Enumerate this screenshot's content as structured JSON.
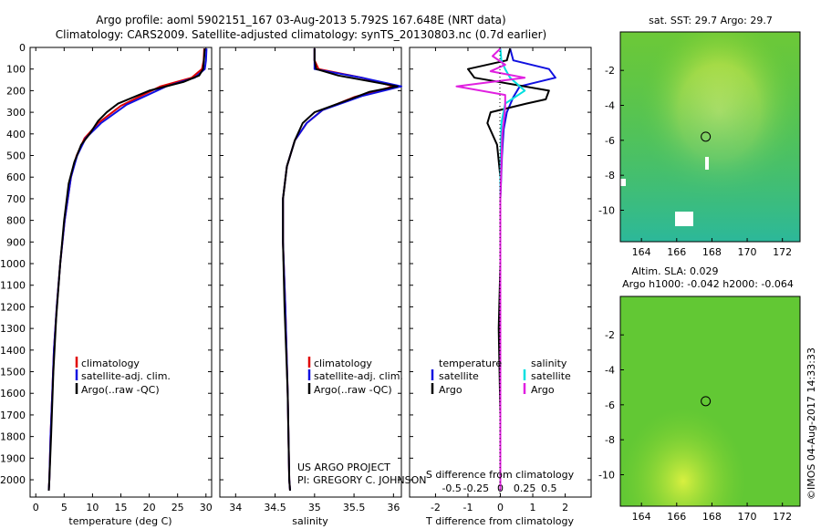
{
  "header": {
    "line1": "Argo profile: aoml 5902151_167 03-Aug-2013 5.792S 167.648E (NRT data)",
    "line2": "Climatology: CARS2009. Satellite-adjusted climatology: synTS_20130803.nc (0.7d earlier)"
  },
  "side_stamp": "©IMOS 04-Aug-2017 14:33:33",
  "credits": {
    "line1": "US ARGO PROJECT",
    "line2": "PI: GREGORY C. JOHNSON"
  },
  "colors": {
    "climatology": "#e00000",
    "satellite": "#1010e0",
    "argo": "#000000",
    "sat_s": "#00e0e0",
    "argo_s": "#e020e0"
  },
  "chart_data": [
    {
      "id": "temperature",
      "type": "line",
      "xlabel": "temperature (deg C)",
      "ylabel": "",
      "xlim": [
        -1,
        31
      ],
      "ylim": [
        2080,
        0
      ],
      "xticks": [
        "0",
        "5",
        "10",
        "15",
        "20",
        "25",
        "30"
      ],
      "xtick_values": [
        0,
        5,
        10,
        15,
        20,
        25,
        30
      ],
      "yticks": [
        "0",
        "100",
        "200",
        "300",
        "400",
        "500",
        "600",
        "700",
        "800",
        "900",
        "1000",
        "1100",
        "1200",
        "1300",
        "1400",
        "1500",
        "1600",
        "1700",
        "1800",
        "1900",
        "2000"
      ],
      "legend": [
        "climatology",
        "satellite-adj. clim.",
        "Argo(..raw -QC)"
      ],
      "series": [
        {
          "name": "climatology",
          "color": "#e00000",
          "x": [
            29.7,
            29.6,
            29.3,
            27.5,
            22,
            15,
            11,
            8.6,
            7.2,
            6.2,
            5.1,
            4.3,
            3.7,
            3.2,
            2.9,
            2.6,
            2.4,
            2.3
          ],
          "y": [
            5,
            60,
            100,
            140,
            180,
            270,
            350,
            420,
            500,
            600,
            800,
            1000,
            1200,
            1400,
            1600,
            1800,
            2000,
            2050
          ]
        },
        {
          "name": "satellite-adj. clim.",
          "color": "#1010e0",
          "x": [
            30.1,
            30.0,
            29.8,
            28,
            23,
            16,
            11.5,
            8.8,
            7.3,
            6.2,
            5.1,
            4.3,
            3.7,
            3.2,
            2.9,
            2.6,
            2.4,
            2.3
          ],
          "y": [
            5,
            60,
            100,
            140,
            180,
            265,
            350,
            420,
            500,
            600,
            800,
            1000,
            1200,
            1400,
            1600,
            1800,
            2000,
            2050
          ]
        },
        {
          "name": "Argo(..raw -QC)",
          "color": "#000000",
          "x": [
            29.8,
            29.7,
            29.5,
            28.8,
            26,
            20,
            14.5,
            12.5,
            11,
            9.5,
            8,
            6.8,
            5.8,
            5.0,
            4.3,
            3.6,
            3.1,
            2.7,
            2.4,
            2.3
          ],
          "y": [
            5,
            40,
            100,
            130,
            160,
            200,
            260,
            300,
            340,
            400,
            450,
            530,
            630,
            800,
            1000,
            1250,
            1500,
            1800,
            2000,
            2050
          ]
        }
      ]
    },
    {
      "id": "salinity",
      "type": "line",
      "xlabel": "salinity",
      "ylabel": "",
      "xlim": [
        33.8,
        36.1
      ],
      "ylim": [
        2080,
        0
      ],
      "xticks": [
        "34",
        "34.5",
        "35",
        "35.5",
        "36"
      ],
      "xtick_values": [
        34,
        34.5,
        35,
        35.5,
        36
      ],
      "legend": [
        "climatology",
        "satellite-adj. clim.",
        "Argo(..raw -QC)"
      ],
      "series": [
        {
          "name": "climatology",
          "color": "#e00000",
          "x": [
            35.0,
            35.0,
            35.05,
            35.6,
            36.0,
            35.5,
            35.1,
            34.9,
            34.75,
            34.65,
            34.6,
            34.6,
            34.63,
            34.66,
            34.68,
            34.69
          ],
          "y": [
            5,
            60,
            100,
            140,
            180,
            230,
            290,
            350,
            430,
            550,
            700,
            900,
            1200,
            1600,
            2000,
            2050
          ]
        },
        {
          "name": "satellite-adj. clim.",
          "color": "#1010e0",
          "x": [
            35.0,
            35.0,
            35.0,
            35.6,
            36.1,
            35.6,
            35.1,
            34.9,
            34.75,
            34.65,
            34.6,
            34.6,
            34.63,
            34.66,
            34.68,
            34.69
          ],
          "y": [
            5,
            60,
            100,
            140,
            180,
            225,
            290,
            350,
            430,
            550,
            700,
            900,
            1200,
            1600,
            2000,
            2050
          ]
        },
        {
          "name": "Argo(..raw -QC)",
          "color": "#000000",
          "x": [
            35.0,
            35.0,
            35.02,
            35.3,
            36.05,
            35.7,
            35.3,
            35.0,
            34.85,
            34.75,
            34.65,
            34.6,
            34.6,
            34.62,
            34.66,
            34.68,
            34.69
          ],
          "y": [
            5,
            60,
            100,
            130,
            180,
            205,
            260,
            300,
            350,
            430,
            550,
            700,
            900,
            1200,
            1600,
            2000,
            2050
          ]
        }
      ]
    },
    {
      "id": "differences",
      "type": "line",
      "xlabel": "T difference from climatology",
      "top_label": "S difference from climatology",
      "xlim": [
        -2.8,
        2.8
      ],
      "ylim": [
        2080,
        0
      ],
      "xticks": [
        "-2",
        "-1",
        "0",
        "1",
        "2"
      ],
      "xtick_values": [
        -2,
        -1,
        0,
        1,
        2
      ],
      "top_ticks": [
        "-0.5",
        "-0.25",
        "0",
        "0.25",
        "0.5"
      ],
      "legend_t": [
        "temperature",
        "satellite",
        "Argo"
      ],
      "legend_s": [
        "salinity",
        "satellite",
        "Argo"
      ],
      "series": [
        {
          "name": "T satellite",
          "color": "#1010e0",
          "x": [
            0.3,
            0.4,
            1.5,
            1.7,
            0.6,
            0.4,
            0.2,
            0.1,
            0.05,
            0,
            0,
            0,
            0,
            0
          ],
          "y": [
            5,
            60,
            100,
            140,
            180,
            230,
            300,
            380,
            500,
            700,
            1000,
            1400,
            1800,
            2050
          ]
        },
        {
          "name": "T Argo",
          "color": "#000000",
          "x": [
            0.3,
            0.2,
            -1.0,
            -0.8,
            1.5,
            1.4,
            0.8,
            -0.3,
            -0.4,
            -0.1,
            0,
            0,
            -0.05,
            0,
            0
          ],
          "y": [
            5,
            60,
            100,
            140,
            200,
            240,
            260,
            300,
            350,
            450,
            600,
            1000,
            1300,
            1700,
            2050
          ]
        },
        {
          "name": "S satellite",
          "color": "#00e0e0",
          "x": [
            0,
            0.01,
            0.05,
            0.1,
            0.25,
            0.05,
            0.01,
            0,
            0,
            0,
            0
          ],
          "y": [
            5,
            60,
            100,
            140,
            200,
            260,
            350,
            600,
            1000,
            1500,
            2050
          ]
        },
        {
          "name": "S Argo",
          "color": "#e020e0",
          "x": [
            0,
            -0.08,
            0.05,
            -0.1,
            0.25,
            -0.45,
            0.05,
            0.05,
            0.02,
            0,
            0,
            0
          ],
          "y": [
            5,
            40,
            80,
            110,
            140,
            180,
            220,
            280,
            400,
            700,
            1200,
            2050
          ]
        }
      ]
    },
    {
      "id": "sst_map",
      "type": "heatmap",
      "title": "sat. SST: 29.7  Argo: 29.7",
      "xticks": [
        "164",
        "166",
        "168",
        "170",
        "172"
      ],
      "xtick_values": [
        164,
        166,
        168,
        170,
        172
      ],
      "yticks": [
        "-2",
        "-4",
        "-6",
        "-8",
        "-10"
      ],
      "ytick_values": [
        -2,
        -4,
        -6,
        -8,
        -10
      ],
      "xlim": [
        162.8,
        173.0
      ],
      "ylim": [
        -11.8,
        0.2
      ],
      "marker": {
        "lon": 167.648,
        "lat": -5.792
      }
    },
    {
      "id": "sla_map",
      "type": "heatmap",
      "title": "Altim. SLA: 0.029",
      "subtitle": "Argo h1000: -0.042 h2000: -0.064",
      "xticks": [
        "164",
        "166",
        "168",
        "170",
        "172"
      ],
      "xtick_values": [
        164,
        166,
        168,
        170,
        172
      ],
      "yticks": [
        "-2",
        "-4",
        "-6",
        "-8",
        "-10"
      ],
      "ytick_values": [
        -2,
        -4,
        -6,
        -8,
        -10
      ],
      "xlim": [
        162.8,
        173.0
      ],
      "ylim": [
        -11.8,
        0.2
      ],
      "marker": {
        "lon": 167.648,
        "lat": -5.792
      }
    }
  ]
}
